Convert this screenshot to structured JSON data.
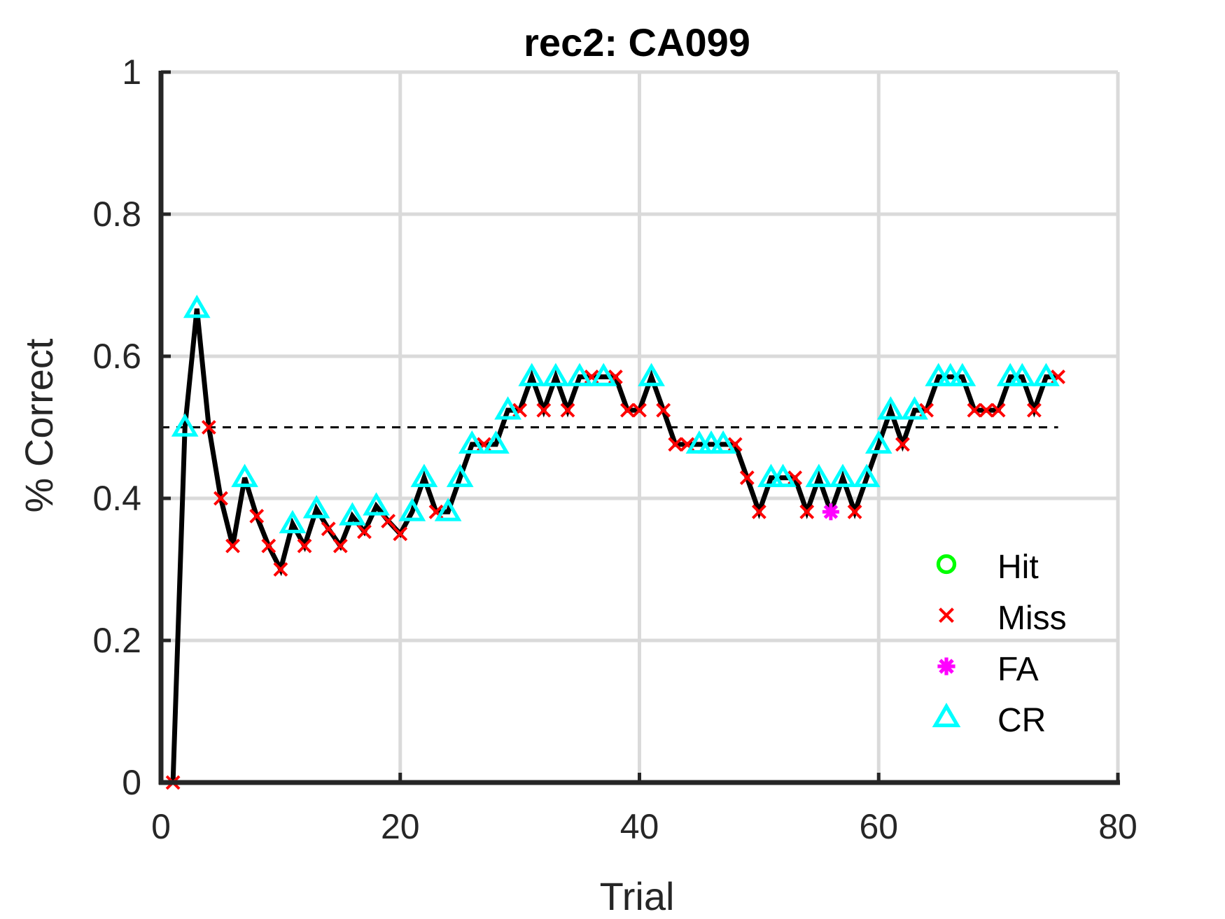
{
  "chart_data": {
    "type": "line",
    "title": "rec2: CA099",
    "xlabel": "Trial",
    "ylabel": "% Correct",
    "xlim": [
      0,
      80
    ],
    "ylim": [
      0,
      1
    ],
    "xticks": [
      "0",
      "20",
      "40",
      "60",
      "80"
    ],
    "yticks": [
      "0",
      "0.2",
      "0.4",
      "0.6",
      "0.8",
      "1"
    ],
    "grid": true,
    "chance_level": 0.5,
    "chance_range": [
      0,
      75
    ],
    "line_color": "#000000",
    "legend_position": "bottom-right",
    "series": [
      {
        "name": "Hit",
        "marker": "circle",
        "color": "#00ff00",
        "points": []
      },
      {
        "name": "Miss",
        "marker": "x",
        "color": "#ff0000",
        "points": [
          [
            1,
            0
          ],
          [
            4,
            0.5
          ],
          [
            5,
            0.4
          ],
          [
            6,
            0.333
          ],
          [
            8,
            0.375
          ],
          [
            9,
            0.333
          ],
          [
            10,
            0.3
          ],
          [
            12,
            0.333
          ],
          [
            14,
            0.357
          ],
          [
            15,
            0.333
          ],
          [
            17,
            0.353
          ],
          [
            19,
            0.368
          ],
          [
            20,
            0.35
          ],
          [
            23,
            0.381
          ],
          [
            27,
            0.476
          ],
          [
            30,
            0.524
          ],
          [
            32,
            0.524
          ],
          [
            34,
            0.524
          ],
          [
            36,
            0.571
          ],
          [
            38,
            0.571
          ],
          [
            39,
            0.524
          ],
          [
            40,
            0.524
          ],
          [
            42,
            0.524
          ],
          [
            43,
            0.476
          ],
          [
            44,
            0.476
          ],
          [
            48,
            0.476
          ],
          [
            49,
            0.429
          ],
          [
            50,
            0.381
          ],
          [
            53,
            0.429
          ],
          [
            54,
            0.381
          ],
          [
            58,
            0.381
          ],
          [
            62,
            0.476
          ],
          [
            64,
            0.524
          ],
          [
            68,
            0.524
          ],
          [
            69,
            0.524
          ],
          [
            70,
            0.524
          ],
          [
            73,
            0.524
          ],
          [
            75,
            0.571
          ]
        ]
      },
      {
        "name": "FA",
        "marker": "star",
        "color": "#ff00ff",
        "points": [
          [
            56,
            0.381
          ]
        ]
      },
      {
        "name": "CR",
        "marker": "triangle",
        "color": "#00ffff",
        "points": [
          [
            2,
            0.5
          ],
          [
            3,
            0.667
          ],
          [
            7,
            0.429
          ],
          [
            11,
            0.364
          ],
          [
            13,
            0.385
          ],
          [
            16,
            0.375
          ],
          [
            18,
            0.389
          ],
          [
            21,
            0.381
          ],
          [
            22,
            0.429
          ],
          [
            24,
            0.381
          ],
          [
            25,
            0.429
          ],
          [
            26,
            0.476
          ],
          [
            28,
            0.476
          ],
          [
            29,
            0.524
          ],
          [
            31,
            0.571
          ],
          [
            33,
            0.571
          ],
          [
            35,
            0.571
          ],
          [
            37,
            0.571
          ],
          [
            41,
            0.571
          ],
          [
            45,
            0.476
          ],
          [
            46,
            0.476
          ],
          [
            47,
            0.476
          ],
          [
            51,
            0.429
          ],
          [
            52,
            0.429
          ],
          [
            55,
            0.429
          ],
          [
            57,
            0.429
          ],
          [
            59,
            0.429
          ],
          [
            60,
            0.476
          ],
          [
            61,
            0.524
          ],
          [
            63,
            0.524
          ],
          [
            65,
            0.571
          ],
          [
            66,
            0.571
          ],
          [
            67,
            0.571
          ],
          [
            71,
            0.571
          ],
          [
            72,
            0.571
          ],
          [
            74,
            0.571
          ]
        ]
      }
    ]
  }
}
